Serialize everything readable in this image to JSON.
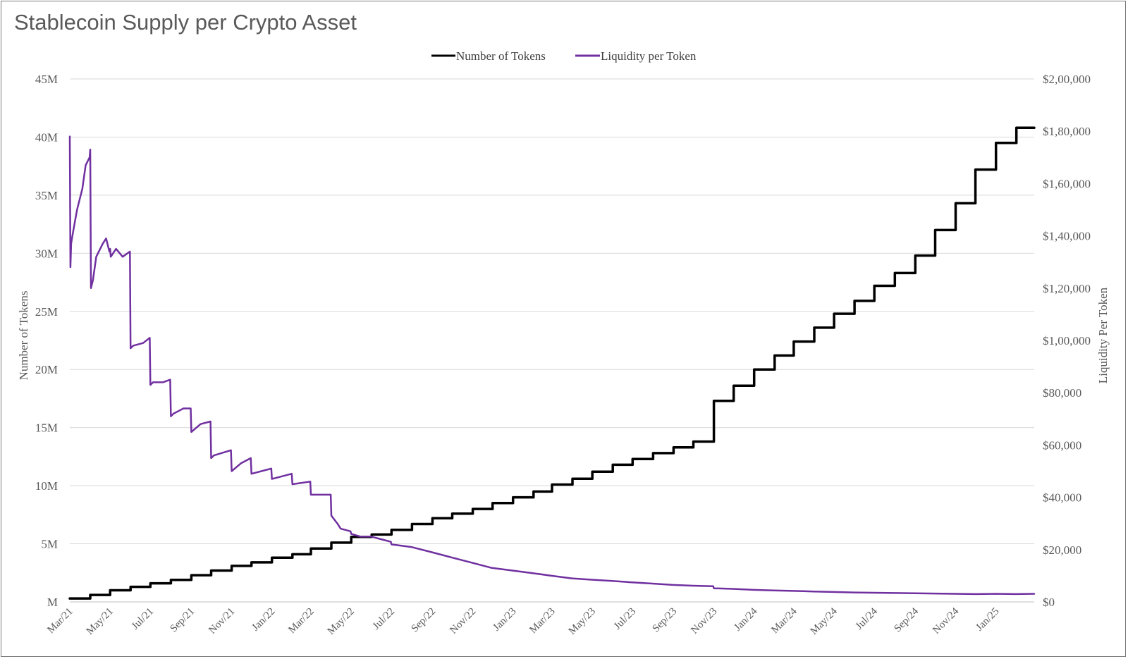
{
  "chart_data": {
    "type": "line",
    "title": "Stablecoin Supply per Crypto Asset",
    "legend_position": "top-center",
    "grid": "horizontal",
    "x_tick_labels": [
      "Mar/21",
      "May/21",
      "Jul/21",
      "Sep/21",
      "Nov/21",
      "Jan/22",
      "Mar/22",
      "May/22",
      "Jul/22",
      "Sep/22",
      "Nov/22",
      "Jan/23",
      "Mar/23",
      "May/23",
      "Jul/23",
      "Sep/23",
      "Nov/23",
      "Jan/24",
      "Mar/24",
      "May/24",
      "Jul/24",
      "Sep/24",
      "Nov/24",
      "Jan/25"
    ],
    "x_range": [
      "2021-03-01",
      "2025-02-28"
    ],
    "y_left": {
      "label": "Number of Tokens",
      "ylim": [
        0,
        45000000
      ],
      "tick_labels": [
        "M",
        "5M",
        "10M",
        "15M",
        "20M",
        "25M",
        "30M",
        "35M",
        "40M",
        "45M"
      ]
    },
    "y_right": {
      "label": "Liquidity Per Token",
      "ylim": [
        0,
        200000
      ],
      "tick_labels": [
        "$0",
        "$20,000",
        "$40,000",
        "$60,000",
        "$80,000",
        "$1,00,000",
        "$1,20,000",
        "$1,40,000",
        "$1,60,000",
        "$1,80,000",
        "$2,00,000"
      ]
    },
    "series": [
      {
        "name": "Number of Tokens",
        "axis": "left",
        "color": "#000000",
        "style": "step",
        "x": [
          "2021-03-01",
          "2021-04-01",
          "2021-05-01",
          "2021-06-01",
          "2021-07-01",
          "2021-08-01",
          "2021-09-01",
          "2021-10-01",
          "2021-11-01",
          "2021-12-01",
          "2022-01-01",
          "2022-02-01",
          "2022-03-01",
          "2022-04-01",
          "2022-05-01",
          "2022-06-01",
          "2022-07-01",
          "2022-08-01",
          "2022-09-01",
          "2022-10-01",
          "2022-11-01",
          "2022-12-01",
          "2023-01-01",
          "2023-02-01",
          "2023-03-01",
          "2023-04-01",
          "2023-05-01",
          "2023-06-01",
          "2023-07-01",
          "2023-08-01",
          "2023-09-01",
          "2023-10-01",
          "2023-11-01",
          "2023-12-01",
          "2024-01-01",
          "2024-02-01",
          "2024-03-01",
          "2024-04-01",
          "2024-05-01",
          "2024-06-01",
          "2024-07-01",
          "2024-08-01",
          "2024-09-01",
          "2024-10-01",
          "2024-11-01",
          "2024-12-01",
          "2025-01-01",
          "2025-02-01",
          "2025-02-28"
        ],
        "values": [
          300000,
          600000,
          1000000,
          1300000,
          1600000,
          1900000,
          2300000,
          2700000,
          3100000,
          3400000,
          3800000,
          4100000,
          4600000,
          5100000,
          5600000,
          5800000,
          6200000,
          6700000,
          7200000,
          7600000,
          8000000,
          8500000,
          9000000,
          9500000,
          10100000,
          10600000,
          11200000,
          11800000,
          12300000,
          12800000,
          13300000,
          13800000,
          17300000,
          18600000,
          20000000,
          21200000,
          22400000,
          23600000,
          24800000,
          25900000,
          27200000,
          28300000,
          29800000,
          32000000,
          34300000,
          37200000,
          39500000,
          40800000,
          40800000
        ]
      },
      {
        "name": "Liquidity per Token",
        "axis": "right",
        "color": "#7030A0",
        "style": "line",
        "x": [
          "2021-03-01",
          "2021-03-02",
          "2021-03-03",
          "2021-03-05",
          "2021-03-12",
          "2021-03-20",
          "2021-03-25",
          "2021-03-31",
          "2021-04-01",
          "2021-04-02",
          "2021-04-05",
          "2021-04-10",
          "2021-04-20",
          "2021-04-25",
          "2021-04-30",
          "2021-05-01",
          "2021-05-02",
          "2021-05-10",
          "2021-05-20",
          "2021-05-31",
          "2021-06-01",
          "2021-06-05",
          "2021-06-20",
          "2021-06-30",
          "2021-07-01",
          "2021-07-05",
          "2021-07-20",
          "2021-07-31",
          "2021-08-01",
          "2021-08-05",
          "2021-08-20",
          "2021-08-31",
          "2021-09-01",
          "2021-09-15",
          "2021-09-30",
          "2021-10-01",
          "2021-10-05",
          "2021-10-31",
          "2021-11-01",
          "2021-11-15",
          "2021-11-30",
          "2021-12-01",
          "2021-12-31",
          "2022-01-01",
          "2022-01-31",
          "2022-02-01",
          "2022-02-28",
          "2022-03-01",
          "2022-03-31",
          "2022-04-01",
          "2022-04-10",
          "2022-04-15",
          "2022-04-30",
          "2022-05-01",
          "2022-05-15",
          "2022-05-31",
          "2022-06-15",
          "2022-06-30",
          "2022-07-01",
          "2022-07-31",
          "2022-08-31",
          "2022-09-30",
          "2022-10-31",
          "2022-11-30",
          "2022-12-31",
          "2023-01-31",
          "2023-02-28",
          "2023-03-31",
          "2023-04-30",
          "2023-05-31",
          "2023-06-30",
          "2023-07-31",
          "2023-08-31",
          "2023-09-30",
          "2023-10-31",
          "2023-11-01",
          "2023-11-30",
          "2023-12-31",
          "2024-01-31",
          "2024-02-29",
          "2024-03-31",
          "2024-04-30",
          "2024-05-31",
          "2024-06-30",
          "2024-07-31",
          "2024-08-31",
          "2024-09-30",
          "2024-10-31",
          "2024-11-30",
          "2024-12-31",
          "2025-01-31",
          "2025-02-28"
        ],
        "values": [
          178000,
          128000,
          137000,
          140000,
          150000,
          158000,
          167000,
          170000,
          173000,
          120000,
          123000,
          132000,
          137000,
          139000,
          134000,
          135000,
          132000,
          135000,
          132000,
          134000,
          97000,
          98000,
          99000,
          101000,
          83000,
          84000,
          84000,
          85000,
          71000,
          72000,
          74000,
          74000,
          65000,
          68000,
          69000,
          55000,
          56000,
          58000,
          50000,
          53000,
          55000,
          49000,
          51000,
          47000,
          49000,
          45000,
          46000,
          41000,
          41000,
          33000,
          30000,
          28000,
          27000,
          26000,
          25000,
          25000,
          24000,
          23000,
          22000,
          21000,
          19000,
          17000,
          15000,
          13000,
          12000,
          11000,
          10000,
          9000,
          8500,
          8000,
          7500,
          7000,
          6500,
          6200,
          6000,
          5200,
          5000,
          4600,
          4400,
          4200,
          4000,
          3800,
          3600,
          3500,
          3400,
          3300,
          3200,
          3100,
          3000,
          3100,
          3000,
          3100
        ]
      }
    ]
  }
}
